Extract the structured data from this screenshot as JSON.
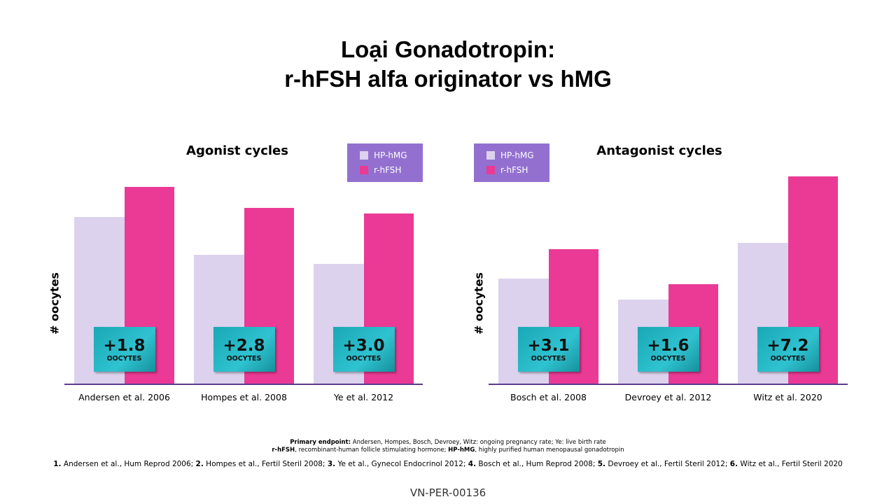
{
  "title": {
    "line1": "Loại Gonadotropin:",
    "line2": "r-hFSH alfa originator vs hMG"
  },
  "colors": {
    "hp_hmg": "#dcd2ee",
    "r_hfsh": "#ea3a95",
    "legend_bg": "#9370cf",
    "axis": "#5b3b8c"
  },
  "chart_data": [
    {
      "type": "bar",
      "title": "Agonist cycles",
      "ylabel": "# oocytes",
      "ylim": [
        0,
        300
      ],
      "value_unit": "relative (no axis scale shown)",
      "categories": [
        "Andersen et al. 2006",
        "Hompes  et al. 2008",
        "Ye et al. 2012"
      ],
      "series": [
        {
          "name": "HP-hMG",
          "values": [
            239,
            185,
            172
          ]
        },
        {
          "name": "r-hFSH",
          "values": [
            282,
            252,
            244
          ]
        }
      ],
      "annotations": [
        {
          "value": "+1.8",
          "unit": "OOCYTES"
        },
        {
          "value": "+2.8",
          "unit": "OOCYTES"
        },
        {
          "value": "+3.0",
          "unit": "OOCYTES"
        }
      ],
      "legend": "top-right"
    },
    {
      "type": "bar",
      "title": "Antagonist cycles",
      "ylabel": "# oocytes",
      "ylim": [
        0,
        300
      ],
      "value_unit": "relative (no axis scale shown)",
      "categories": [
        "Bosch et al. 2008",
        "Devroey et al. 2012",
        "Witz et al. 2020"
      ],
      "series": [
        {
          "name": "HP-hMG",
          "values": [
            151,
            121,
            202
          ]
        },
        {
          "name": "r-hFSH",
          "values": [
            193,
            143,
            297
          ]
        }
      ],
      "annotations": [
        {
          "value": "+3.1",
          "unit": "OOCYTES"
        },
        {
          "value": "+1.6",
          "unit": "OOCYTES"
        },
        {
          "value": "+7.2",
          "unit": "OOCYTES"
        }
      ],
      "legend": "top-left"
    }
  ],
  "footnotes": {
    "primary_label": "Primary endpoint:",
    "primary_text": " Andersen, Hompes, Bosch, Devroey, Witz: ongoing pregnancy rate; Ye: live birth rate",
    "abbr1_label": "r-hFSH",
    "abbr1_text": ",   recombinant-human follicle stimulating hormone; ",
    "abbr2_label": "HP-hMG",
    "abbr2_text": ", highly purified human menopausal gonadotropin",
    "refs": [
      {
        "n": "1.",
        "t": " Andersen et al., Hum Reprod 2006; "
      },
      {
        "n": "2.",
        "t": " Hompes et al., Fertil Steril 2008; "
      },
      {
        "n": "3.",
        "t": " Ye et al., Gynecol Endocrinol 2012; "
      },
      {
        "n": "4.",
        "t": " Bosch et al., Hum Reprod 2008; "
      },
      {
        "n": "5.",
        "t": " Devroey et al., Fertil Steril 2012; "
      },
      {
        "n": "6.",
        "t": " Witz et al., Fertil Steril 2020"
      }
    ]
  },
  "code": "VN-PER-00136"
}
